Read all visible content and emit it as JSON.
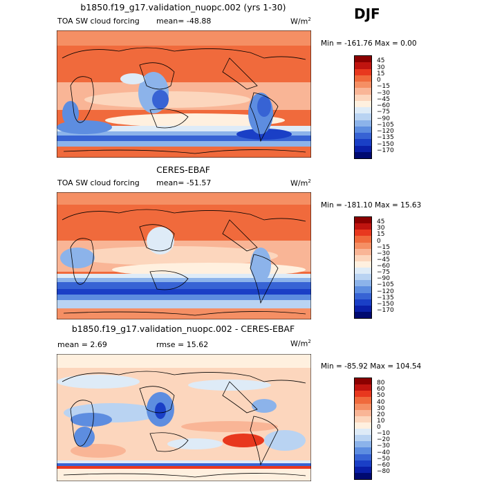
{
  "season": "DJF",
  "panels": [
    {
      "id": "model",
      "title": "b1850.f19_g17.validation_nuopc.002 (yrs 1-30)",
      "variable": "TOA SW cloud forcing",
      "stat1": "mean= -48.88",
      "stat2": "",
      "units": "W/m",
      "units_exp": "2",
      "minmax": "Min = -161.76 Max =    0.00"
    },
    {
      "id": "obs",
      "title": "CERES-EBAF",
      "variable": "TOA SW cloud forcing",
      "stat1": "mean= -51.57",
      "stat2": "",
      "units": "W/m",
      "units_exp": "2",
      "minmax": "Min = -181.10 Max =  15.63"
    },
    {
      "id": "diff",
      "title": "b1850.f19_g17.validation_nuopc.002 - CERES-EBAF",
      "variable": "",
      "stat1": "mean =   2.69",
      "stat2": "rmse =  15.62",
      "units": "W/m",
      "units_exp": "2",
      "minmax": "Min = -85.92 Max = 104.54"
    }
  ],
  "colorbars": {
    "field": {
      "labels": [
        "45",
        "30",
        "15",
        "0",
        "−15",
        "−30",
        "−45",
        "−60",
        "−75",
        "−90",
        "−105",
        "−120",
        "−135",
        "−150",
        "−170"
      ],
      "colors": [
        "#8b0000",
        "#c0140f",
        "#e8381e",
        "#f06a3c",
        "#f58f64",
        "#f9b596",
        "#fcd6bd",
        "#fff0df",
        "#deebf7",
        "#b9d3f2",
        "#8cb3ea",
        "#5d8de0",
        "#3763d4",
        "#1a3fc6",
        "#0a1fa8",
        "#000a70"
      ]
    },
    "diff": {
      "labels": [
        "80",
        "60",
        "50",
        "40",
        "30",
        "20",
        "10",
        "0",
        "−10",
        "−20",
        "−30",
        "−40",
        "−50",
        "−60",
        "−80"
      ],
      "colors": [
        "#8b0000",
        "#c0140f",
        "#e8381e",
        "#f06a3c",
        "#f58f64",
        "#f9b596",
        "#fcd6bd",
        "#fff0df",
        "#deebf7",
        "#b9d3f2",
        "#8cb3ea",
        "#5d8de0",
        "#3763d4",
        "#1a3fc6",
        "#0a1fa8",
        "#000a70"
      ]
    }
  },
  "chart_data": [
    {
      "type": "heatmap",
      "title": "b1850.f19_g17.validation_nuopc.002 (yrs 1-30)",
      "variable": "TOA SW cloud forcing",
      "units": "W/m2",
      "mean": -48.88,
      "min": -161.76,
      "max": 0.0,
      "levels": [
        45,
        30,
        15,
        0,
        -15,
        -30,
        -45,
        -60,
        -75,
        -90,
        -105,
        -120,
        -135,
        -150,
        -170
      ],
      "season": "DJF"
    },
    {
      "type": "heatmap",
      "title": "CERES-EBAF",
      "variable": "TOA SW cloud forcing",
      "units": "W/m2",
      "mean": -51.57,
      "min": -181.1,
      "max": 15.63,
      "levels": [
        45,
        30,
        15,
        0,
        -15,
        -30,
        -45,
        -60,
        -75,
        -90,
        -105,
        -120,
        -135,
        -150,
        -170
      ],
      "season": "DJF"
    },
    {
      "type": "heatmap",
      "title": "b1850.f19_g17.validation_nuopc.002 - CERES-EBAF",
      "units": "W/m2",
      "mean": 2.69,
      "rmse": 15.62,
      "min": -85.92,
      "max": 104.54,
      "levels": [
        80,
        60,
        50,
        40,
        30,
        20,
        10,
        0,
        -10,
        -20,
        -30,
        -40,
        -50,
        -60,
        -80
      ],
      "season": "DJF"
    }
  ]
}
